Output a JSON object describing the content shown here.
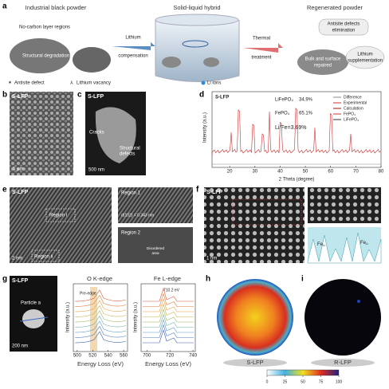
{
  "panel_a": {
    "label": "a",
    "left_title": "Industrial black powder",
    "no_carbon": "No-carbon layer regions",
    "degradation": "Structural degradation",
    "arrow1": [
      "Lithium",
      "compensation"
    ],
    "middle_title": "Solid-liquid hybrid",
    "li_ions": "Li ions",
    "arrow2": [
      "Thermal",
      "treatment"
    ],
    "right_title": "Regenerated powder",
    "antisite_elim": [
      "Antisite defects",
      "elimination"
    ],
    "bulk": [
      "Bulk and surface",
      "repaired"
    ],
    "li_sup": [
      "Lithium",
      "supplementation"
    ],
    "legend_antisite": "Antisite defect",
    "legend_vacancy": "Lithium vacancy"
  },
  "panel_b": {
    "label": "b",
    "tag": "S-LFP",
    "scale": "5 μm"
  },
  "panel_c": {
    "label": "c",
    "tag": "S-LFP",
    "cracks": "Cracks",
    "defects": [
      "Structural",
      "defects"
    ],
    "scale": "500 nm"
  },
  "panel_d": {
    "label": "d",
    "tag": "S-LFP",
    "phases": [
      [
        "LiFePO₄",
        "34.9%"
      ],
      [
        "FePO₄",
        "65.1%"
      ]
    ],
    "ratio": "Li/Fe=3.69%",
    "legend": [
      "Difference",
      "Experimental",
      "Calculation",
      "FePO₄",
      "LiFePO₄"
    ],
    "ylabel": "Intensity (a.u.)",
    "xlabel": "2 Theta (degree)",
    "xlim": [
      13,
      80
    ],
    "xticks": [
      20,
      30,
      40,
      50,
      60,
      70,
      80
    ]
  },
  "panel_e": {
    "label": "e",
    "tag": "S-LFP",
    "region_i": "Region i",
    "region_ii": "Region ii",
    "scale": "2 nm",
    "region1": "Region 1",
    "dspacing": "d(102) = 0.343 nm",
    "region2": "Region 2",
    "disordered": [
      "Disordered",
      "area"
    ]
  },
  "panel_f": {
    "label": "f",
    "tag": "S-LFP",
    "scale": "1 nm",
    "fe_li": [
      "Fe",
      "Li"
    ]
  },
  "panel_g": {
    "label": "g",
    "tag": "S-LFP",
    "particle": "Particle a",
    "scale": "200 nm",
    "o_title": "O K-edge",
    "pre_edge": "Pre-edge",
    "ylabel": "Intensity (a.u.)",
    "xlabel": "Energy Loss (eV)",
    "o_xlim": [
      495,
      565
    ],
    "o_xticks": [
      500,
      520,
      540,
      560
    ],
    "fe_title": "Fe L-edge",
    "fe_peak": "710.2 eV",
    "fe_xlim": [
      695,
      742
    ],
    "fe_xticks": [
      700,
      720,
      740
    ]
  },
  "panel_h": {
    "label": "h",
    "tag": "S-LFP"
  },
  "panel_i": {
    "label": "i",
    "tag": "R-LFP"
  },
  "colorbar": {
    "lim": [
      0,
      100
    ],
    "ticks": [
      0,
      25,
      50,
      75,
      100
    ]
  }
}
